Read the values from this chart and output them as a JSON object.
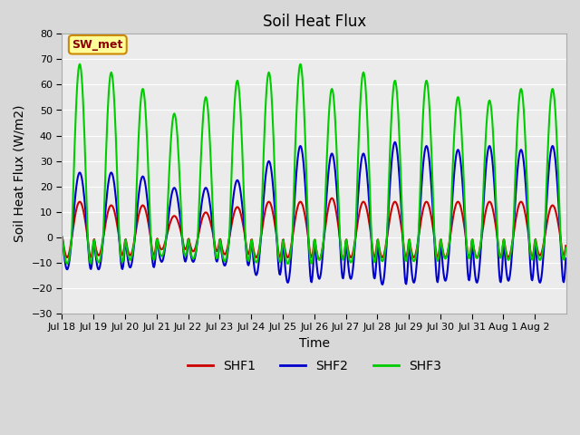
{
  "title": "Soil Heat Flux",
  "xlabel": "Time",
  "ylabel": "Soil Heat Flux (W/m2)",
  "ylim": [
    -30,
    80
  ],
  "yticks": [
    -30,
    -20,
    -10,
    0,
    10,
    20,
    30,
    40,
    50,
    60,
    70,
    80
  ],
  "xtick_labels": [
    "Jul 18",
    "Jul 19",
    "Jul 20",
    "Jul 21",
    "Jul 22",
    "Jul 23",
    "Jul 24",
    "Jul 25",
    "Jul 26",
    "Jul 27",
    "Jul 28",
    "Jul 29",
    "Jul 30",
    "Jul 31",
    "Aug 1",
    "Aug 2"
  ],
  "colors": {
    "SHF1": "#cc0000",
    "SHF2": "#0000cc",
    "SHF3": "#00cc00"
  },
  "annotation_label": "SW_met",
  "annotation_bg": "#ffff99",
  "annotation_border": "#cc8800",
  "fig_bg": "#d8d8d8",
  "plot_bg": "#ebebeb",
  "grid_color": "#ffffff",
  "line_width": 1.5,
  "n_days": 16,
  "points_per_day": 48,
  "shf1_scale": 14,
  "shf2_scale": 30,
  "shf3_scale": 65,
  "shf1_night": -8,
  "shf2_night": -15,
  "shf3_night": -10,
  "var1": [
    1.0,
    0.9,
    0.9,
    0.6,
    0.7,
    0.85,
    1.0,
    1.0,
    1.1,
    1.0,
    1.0,
    1.0,
    1.0,
    1.0,
    1.0,
    0.9
  ],
  "var2": [
    0.85,
    0.85,
    0.8,
    0.65,
    0.65,
    0.75,
    1.0,
    1.2,
    1.1,
    1.1,
    1.25,
    1.2,
    1.15,
    1.2,
    1.15,
    1.2
  ],
  "var3": [
    1.05,
    1.0,
    0.9,
    0.75,
    0.85,
    0.95,
    1.0,
    1.05,
    0.9,
    1.0,
    0.95,
    0.95,
    0.85,
    0.83,
    0.9,
    0.9
  ]
}
